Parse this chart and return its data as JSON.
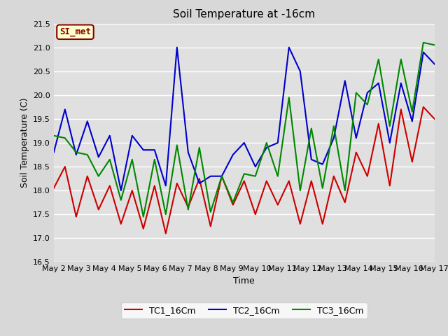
{
  "title": "Soil Temperature at -16cm",
  "xlabel": "Time",
  "ylabel": "Soil Temperature (C)",
  "ylim": [
    16.5,
    21.5
  ],
  "background_color": "#d8d8d8",
  "plot_bg_color": "#e0e0e0",
  "annotation_text": "SI_met",
  "annotation_bg": "#ffffcc",
  "annotation_border": "#880000",
  "x_tick_labels": [
    "May 2",
    "May 3",
    "May 4",
    "May 5",
    "May 6",
    "May 7",
    "May 8",
    "May 9",
    "May 10",
    "May 11",
    "May 12",
    "May 13",
    "May 14",
    "May 15",
    "May 16",
    "May 17"
  ],
  "TC1_16Cm": [
    18.05,
    18.5,
    17.45,
    18.3,
    17.6,
    18.1,
    17.3,
    18.0,
    17.2,
    18.1,
    17.1,
    18.15,
    17.65,
    18.25,
    17.25,
    18.3,
    17.7,
    18.2,
    17.5,
    18.2,
    17.7,
    18.2,
    17.3,
    18.2,
    17.3,
    18.3,
    17.75,
    18.8,
    18.3,
    19.4,
    18.1,
    19.7,
    18.6,
    19.75,
    19.5
  ],
  "TC2_16Cm": [
    18.8,
    19.7,
    18.75,
    19.45,
    18.7,
    19.15,
    18.0,
    19.15,
    18.85,
    18.85,
    18.1,
    21.0,
    18.8,
    18.15,
    18.3,
    18.3,
    18.75,
    19.0,
    18.5,
    18.9,
    19.0,
    21.0,
    20.5,
    18.65,
    18.55,
    19.1,
    20.3,
    19.1,
    20.05,
    20.25,
    19.0,
    20.25,
    19.45,
    20.9,
    20.65
  ],
  "TC3_16Cm": [
    19.15,
    19.1,
    18.8,
    18.75,
    18.3,
    18.65,
    17.8,
    18.65,
    17.45,
    18.65,
    17.5,
    18.95,
    17.6,
    18.9,
    17.55,
    18.3,
    17.75,
    18.35,
    18.3,
    19.0,
    18.3,
    19.95,
    18.0,
    19.3,
    18.05,
    19.35,
    18.0,
    20.05,
    19.8,
    20.75,
    19.35,
    20.75,
    19.65,
    21.1,
    21.05
  ],
  "line_color_TC1": "#cc0000",
  "line_color_TC2": "#0000cc",
  "line_color_TC3": "#008800",
  "line_width": 1.5,
  "grid_color": "#ffffff",
  "title_fontsize": 11,
  "label_fontsize": 9,
  "tick_fontsize": 8
}
